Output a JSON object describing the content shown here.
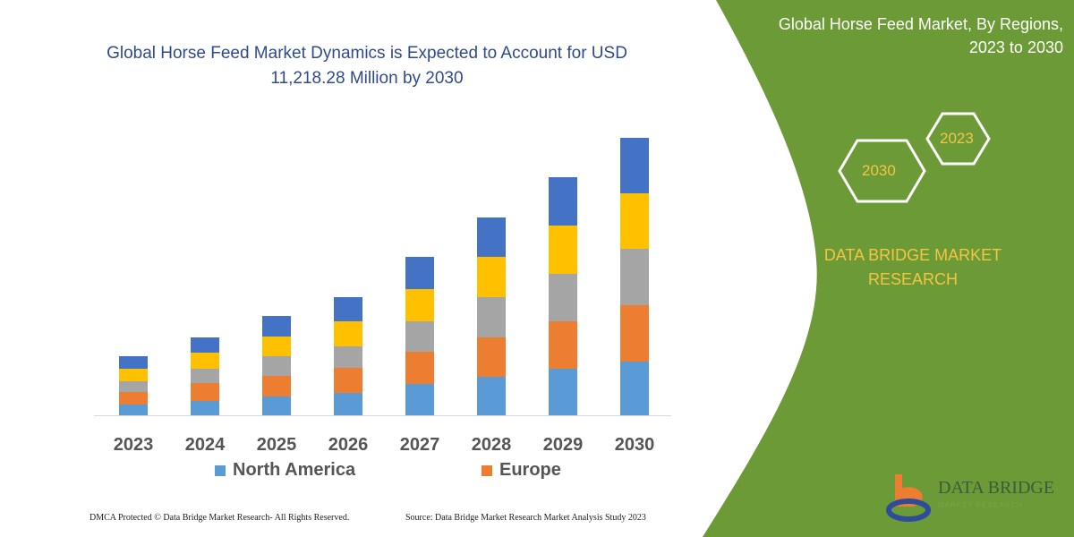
{
  "title": "Global Horse Feed Market Dynamics is Expected to Account for USD 11,218.28 Million by 2030",
  "side_panel": {
    "title": "Global Horse Feed Market, By Regions, 2023 to 2030",
    "hex_years": [
      "2030",
      "2023"
    ],
    "brand": "DATA BRIDGE MARKET RESEARCH",
    "logo_text": "DATA BRIDGE",
    "logo_sub": "MARKET RESEARCH",
    "panel_color": "#6b9a37"
  },
  "footer": {
    "left": "DMCA Protected © Data Bridge Market Research-  All Rights Reserved.",
    "right": "Source: Data Bridge Market Research  Market Analysis Study 2023"
  },
  "chart_data": {
    "type": "bar",
    "stacked": true,
    "title": "Global Horse Feed Market Dynamics is Expected to Account for USD 11,218.28 Million by 2030",
    "categories": [
      "2023",
      "2024",
      "2025",
      "2026",
      "2027",
      "2028",
      "2029",
      "2030"
    ],
    "value_unit": "USD Million (estimated)",
    "y_axis_shown": false,
    "grid": false,
    "legend_placement": "bottom",
    "legend": [
      "North America",
      "Europe"
    ],
    "series": [
      {
        "name": "North America",
        "color": "#5b9bd5",
        "values": [
          434,
          579,
          760,
          905,
          1267,
          1556,
          1882,
          2171
        ]
      },
      {
        "name": "Europe",
        "color": "#ed7d31",
        "values": [
          507,
          724,
          832,
          1013,
          1303,
          1592,
          1918,
          2280
        ]
      },
      {
        "color": "#a5a5a5",
        "values": [
          434,
          579,
          796,
          869,
          1230,
          1629,
          1918,
          2280
        ]
      },
      {
        "color": "#ffc000",
        "values": [
          507,
          651,
          796,
          1013,
          1303,
          1629,
          1954,
          2244
        ]
      },
      {
        "color": "#4472c4",
        "values": [
          507,
          615,
          832,
          977,
          1303,
          1592,
          1954,
          2244
        ]
      }
    ]
  }
}
